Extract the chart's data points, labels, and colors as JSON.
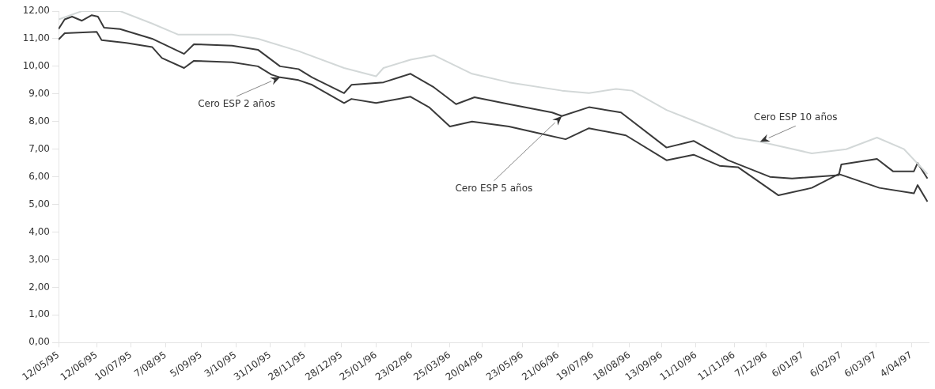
{
  "chart_data": {
    "type": "line",
    "series": [
      {
        "name": "Cero ESP 2 años",
        "color": "#3a3a3a",
        "x": [
          "1995-05-12",
          "1995-05-17",
          "1995-06-12",
          "1995-06-16",
          "1995-07-06",
          "1995-07-27",
          "1995-08-04",
          "1995-08-22",
          "1995-08-30",
          "1995-09-30",
          "1995-10-21",
          "1995-11-01",
          "1995-11-08",
          "1995-11-23",
          "1995-12-04",
          "1995-12-30",
          "1996-01-05",
          "1996-01-25",
          "1996-02-22",
          "1996-03-08",
          "1996-03-25",
          "1996-04-12",
          "1996-05-12",
          "1996-06-03",
          "1996-06-27",
          "1996-07-16",
          "1996-08-07",
          "1996-08-15",
          "1996-09-17",
          "1996-10-09",
          "1996-10-30",
          "1996-11-14",
          "1996-12-17",
          "1997-01-13",
          "1997-02-04",
          "1997-03-09",
          "1997-04-06",
          "1997-04-09",
          "1997-04-17"
        ],
        "values": [
          10.97,
          11.2,
          11.25,
          10.95,
          10.85,
          10.7,
          10.3,
          9.94,
          10.2,
          10.15,
          10.0,
          9.7,
          9.6,
          9.5,
          9.33,
          8.67,
          8.82,
          8.67,
          8.9,
          8.52,
          7.82,
          8.0,
          7.82,
          7.6,
          7.36,
          7.76,
          7.57,
          7.5,
          6.6,
          6.8,
          6.4,
          6.35,
          5.33,
          5.6,
          6.1,
          5.6,
          5.4,
          5.7,
          5.1
        ]
      },
      {
        "name": "Cero ESP 5 años",
        "color": "#3a3a3a",
        "x": [
          "1995-05-12",
          "1995-05-17",
          "1995-05-23",
          "1995-05-31",
          "1995-06-08",
          "1995-06-13",
          "1995-06-18",
          "1995-07-01",
          "1995-07-27",
          "1995-08-22",
          "1995-08-30",
          "1995-09-30",
          "1995-10-21",
          "1995-11-08",
          "1995-11-23",
          "1995-12-04",
          "1995-12-30",
          "1996-01-05",
          "1996-01-31",
          "1996-02-22",
          "1996-03-12",
          "1996-03-30",
          "1996-04-14",
          "1996-05-12",
          "1996-06-16",
          "1996-06-24",
          "1996-07-16",
          "1996-08-11",
          "1996-09-17",
          "1996-10-09",
          "1996-11-06",
          "1996-12-10",
          "1996-12-28",
          "1997-02-04",
          "1997-02-06",
          "1997-03-07",
          "1997-03-20",
          "1997-04-06",
          "1997-04-09",
          "1997-04-17"
        ],
        "values": [
          11.35,
          11.7,
          11.8,
          11.65,
          11.85,
          11.8,
          11.4,
          11.35,
          11.0,
          10.45,
          10.8,
          10.75,
          10.6,
          10.0,
          9.9,
          9.6,
          9.03,
          9.33,
          9.42,
          9.73,
          9.24,
          8.63,
          8.88,
          8.63,
          8.33,
          8.2,
          8.52,
          8.33,
          7.06,
          7.3,
          6.6,
          6.0,
          5.94,
          6.06,
          6.45,
          6.65,
          6.2,
          6.2,
          6.5,
          5.94
        ]
      },
      {
        "name": "Cero ESP 10 años",
        "color": "#d3d8d8",
        "x": [
          "1995-05-12",
          "1995-05-31",
          "1995-07-01",
          "1995-07-27",
          "1995-08-17",
          "1995-09-30",
          "1995-10-21",
          "1995-11-23",
          "1995-12-30",
          "1996-01-25",
          "1996-01-31",
          "1996-02-22",
          "1996-03-12",
          "1996-04-12",
          "1996-05-12",
          "1996-06-24",
          "1996-07-16",
          "1996-08-07",
          "1996-08-20",
          "1996-09-17",
          "1996-10-09",
          "1996-11-12",
          "1996-12-02",
          "1997-01-13",
          "1997-02-10",
          "1997-03-07",
          "1997-03-29",
          "1997-04-17"
        ],
        "values": [
          11.7,
          12.0,
          12.0,
          11.55,
          11.15,
          11.15,
          11.0,
          10.55,
          9.94,
          9.64,
          9.94,
          10.24,
          10.4,
          9.73,
          9.42,
          9.12,
          9.03,
          9.18,
          9.12,
          8.42,
          8.03,
          7.42,
          7.27,
          6.85,
          7.0,
          7.42,
          7.0,
          6.1
        ]
      }
    ],
    "xlim": [
      "1995-05-12",
      "1997-04-18"
    ],
    "xticks": [
      {
        "value": "1995-05-12",
        "label": "12/05/95"
      },
      {
        "value": "1995-06-12",
        "label": "12/06/95"
      },
      {
        "value": "1995-07-10",
        "label": "10/07/95"
      },
      {
        "value": "1995-08-07",
        "label": "7/08/95"
      },
      {
        "value": "1995-09-05",
        "label": "5/09/95"
      },
      {
        "value": "1995-10-03",
        "label": "3/10/95"
      },
      {
        "value": "1995-10-31",
        "label": "31/10/95"
      },
      {
        "value": "1995-11-28",
        "label": "28/11/95"
      },
      {
        "value": "1995-12-28",
        "label": "28/12/95"
      },
      {
        "value": "1996-01-25",
        "label": "25/01/96"
      },
      {
        "value": "1996-02-23",
        "label": "23/02/96"
      },
      {
        "value": "1996-03-25",
        "label": "25/03/96"
      },
      {
        "value": "1996-04-20",
        "label": "20/04/96"
      },
      {
        "value": "1996-05-23",
        "label": "23/05/96"
      },
      {
        "value": "1996-06-21",
        "label": "21/06/96"
      },
      {
        "value": "1996-07-19",
        "label": "19/07/96"
      },
      {
        "value": "1996-08-18",
        "label": "18/08/96"
      },
      {
        "value": "1996-09-13",
        "label": "13/09/96"
      },
      {
        "value": "1996-10-11",
        "label": "11/10/96"
      },
      {
        "value": "1996-11-11",
        "label": "11/11/96"
      },
      {
        "value": "1996-12-07",
        "label": "7/12/96"
      },
      {
        "value": "1997-01-06",
        "label": "6/01/97"
      },
      {
        "value": "1997-02-06",
        "label": "6/02/97"
      },
      {
        "value": "1997-03-06",
        "label": "6/03/97"
      },
      {
        "value": "1997-04-04",
        "label": "4/04/97"
      }
    ],
    "ylim": [
      0,
      12
    ],
    "yticks": [
      {
        "value": 0,
        "label": "0,00"
      },
      {
        "value": 1,
        "label": "1,00"
      },
      {
        "value": 2,
        "label": "2,00"
      },
      {
        "value": 3,
        "label": "3,00"
      },
      {
        "value": 4,
        "label": "4,00"
      },
      {
        "value": 5,
        "label": "5,00"
      },
      {
        "value": 6,
        "label": "6,00"
      },
      {
        "value": 7,
        "label": "7,00"
      },
      {
        "value": 8,
        "label": "8,00"
      },
      {
        "value": 9,
        "label": "9,00"
      },
      {
        "value": 10,
        "label": "10,00"
      },
      {
        "value": 11,
        "label": "11,00"
      },
      {
        "value": 12,
        "label": "12,00"
      }
    ],
    "grid": false,
    "legend": false,
    "marker": "none",
    "line_style": "solid"
  }
}
